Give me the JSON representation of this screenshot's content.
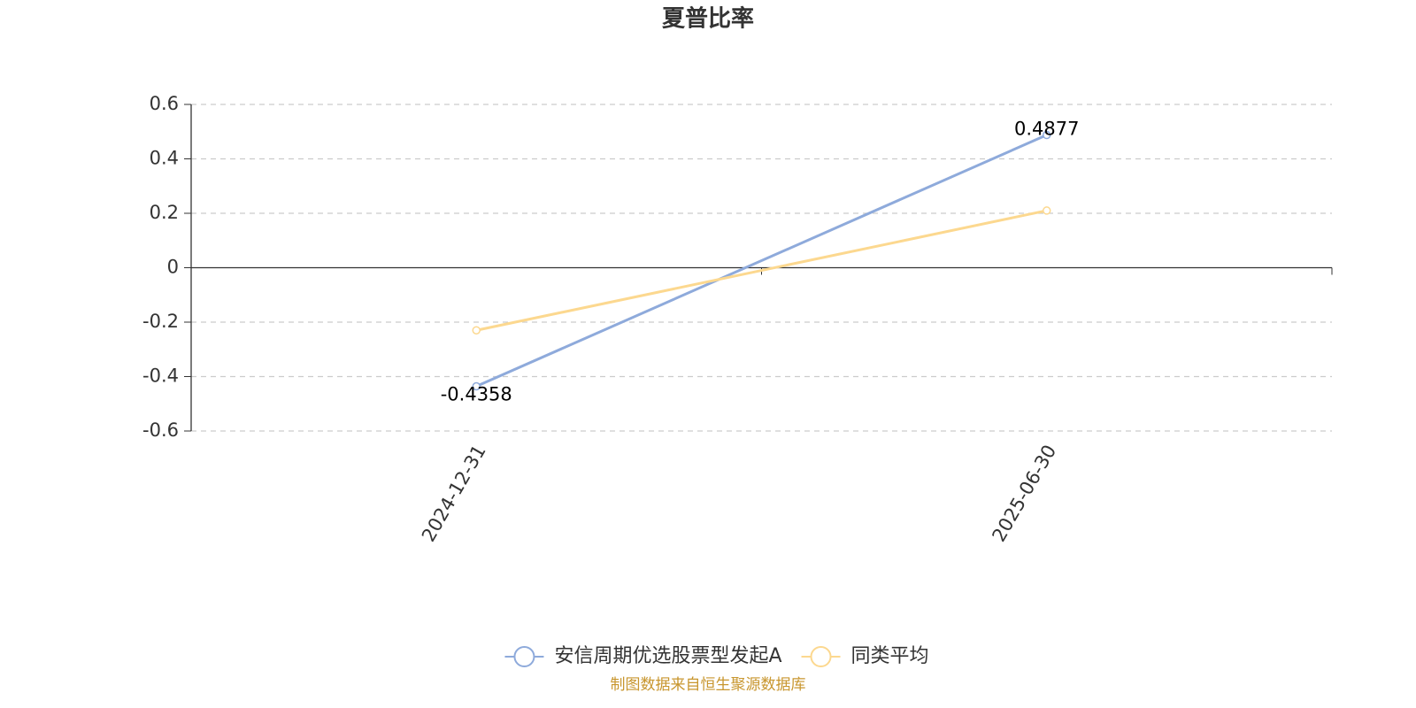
{
  "chart_data": {
    "type": "line",
    "title": "夏普比率",
    "categories": [
      "2024-12-31",
      "2025-06-30"
    ],
    "series": [
      {
        "name": "安信周期优选股票型发起A",
        "color": "#8eaadb",
        "values": [
          -0.4358,
          0.4877
        ],
        "data_labels": true
      },
      {
        "name": "同类平均",
        "color": "#fcd88f",
        "values": [
          -0.23,
          0.21
        ],
        "data_labels": false
      }
    ],
    "ylim": [
      -0.6,
      0.6
    ],
    "yticks": [
      -0.6,
      -0.4,
      -0.2,
      0,
      0.2,
      0.4,
      0.6
    ],
    "grid": true,
    "legend": "bottom",
    "source": "制图数据来自恒生聚源数据库"
  }
}
